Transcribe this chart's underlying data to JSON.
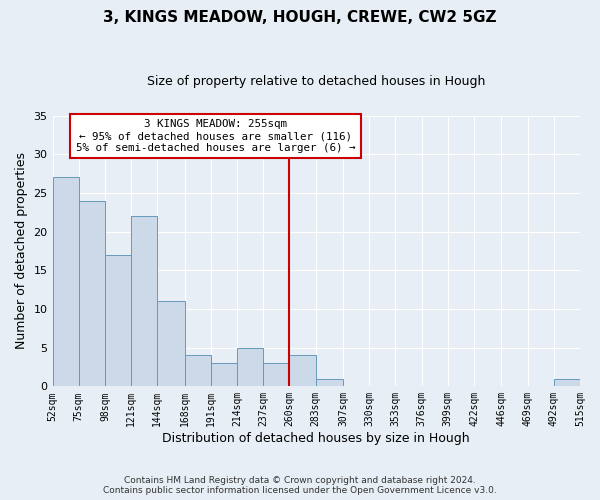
{
  "title": "3, KINGS MEADOW, HOUGH, CREWE, CW2 5GZ",
  "subtitle": "Size of property relative to detached houses in Hough",
  "xlabel": "Distribution of detached houses by size in Hough",
  "ylabel": "Number of detached properties",
  "bar_color": "#ccd9e8",
  "bar_edgecolor": "#6699bb",
  "annotation_line_color": "#cc0000",
  "annotation_box_edgecolor": "#cc0000",
  "annotation_text_line1": "3 KINGS MEADOW: 255sqm",
  "annotation_text_line2": "← 95% of detached houses are smaller (116)",
  "annotation_text_line3": "5% of semi-detached houses are larger (6) →",
  "property_line_x": 260,
  "bin_edges": [
    52,
    75,
    98,
    121,
    144,
    168,
    191,
    214,
    237,
    260,
    283,
    307,
    330,
    353,
    376,
    399,
    422,
    446,
    469,
    492,
    515
  ],
  "bin_labels": [
    "52sqm",
    "75sqm",
    "98sqm",
    "121sqm",
    "144sqm",
    "168sqm",
    "191sqm",
    "214sqm",
    "237sqm",
    "260sqm",
    "283sqm",
    "307sqm",
    "330sqm",
    "353sqm",
    "376sqm",
    "399sqm",
    "422sqm",
    "446sqm",
    "469sqm",
    "492sqm",
    "515sqm"
  ],
  "counts": [
    27,
    24,
    17,
    22,
    11,
    4,
    3,
    5,
    3,
    4,
    1,
    0,
    0,
    0,
    0,
    0,
    0,
    0,
    0,
    1,
    0
  ],
  "ylim": [
    0,
    35
  ],
  "yticks": [
    0,
    5,
    10,
    15,
    20,
    25,
    30,
    35
  ],
  "footer_line1": "Contains HM Land Registry data © Crown copyright and database right 2024.",
  "footer_line2": "Contains public sector information licensed under the Open Government Licence v3.0.",
  "background_color": "#e8eef5",
  "plot_background_color": "#e8eef5",
  "grid_color": "#ffffff"
}
